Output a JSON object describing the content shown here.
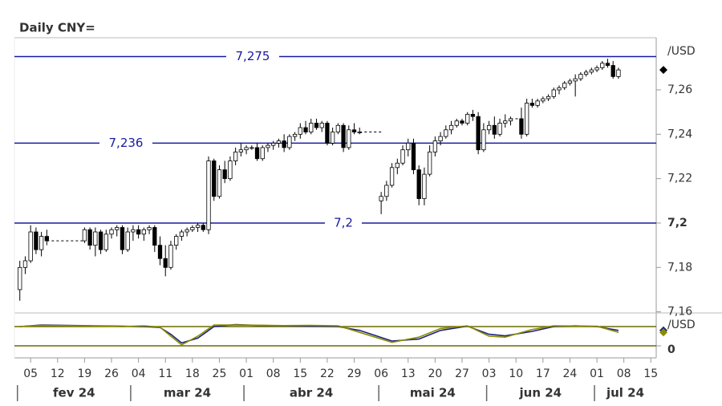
{
  "chart_data": {
    "type": "candlestick",
    "title": "Daily CNY=",
    "unit_label": "/USD",
    "x": [
      "2024-02-01",
      "2024-02-02",
      "2024-02-05",
      "2024-02-06",
      "2024-02-07",
      "2024-02-08",
      "2024-02-19",
      "2024-02-20",
      "2024-02-21",
      "2024-02-22",
      "2024-02-23",
      "2024-02-26",
      "2024-02-27",
      "2024-02-28",
      "2024-02-29",
      "2024-03-01",
      "2024-03-04",
      "2024-03-05",
      "2024-03-06",
      "2024-03-07",
      "2024-03-08",
      "2024-03-11",
      "2024-03-12",
      "2024-03-13",
      "2024-03-14",
      "2024-03-15",
      "2024-03-18",
      "2024-03-19",
      "2024-03-20",
      "2024-03-21",
      "2024-03-22",
      "2024-03-25",
      "2024-03-26",
      "2024-03-27",
      "2024-03-28",
      "2024-03-29",
      "2024-04-01",
      "2024-04-02",
      "2024-04-03",
      "2024-04-04",
      "2024-04-05",
      "2024-04-08",
      "2024-04-09",
      "2024-04-10",
      "2024-04-11",
      "2024-04-12",
      "2024-04-15",
      "2024-04-16",
      "2024-04-17",
      "2024-04-18",
      "2024-04-19",
      "2024-04-22",
      "2024-04-23",
      "2024-04-24",
      "2024-04-25",
      "2024-04-26",
      "2024-04-29",
      "2024-04-30",
      "2024-05-06",
      "2024-05-07",
      "2024-05-08",
      "2024-05-09",
      "2024-05-10",
      "2024-05-13",
      "2024-05-14",
      "2024-05-15",
      "2024-05-16",
      "2024-05-17",
      "2024-05-20",
      "2024-05-21",
      "2024-05-22",
      "2024-05-23",
      "2024-05-24",
      "2024-05-27",
      "2024-05-28",
      "2024-05-29",
      "2024-05-30",
      "2024-05-31",
      "2024-06-03",
      "2024-06-04",
      "2024-06-05",
      "2024-06-06",
      "2024-06-07",
      "2024-06-11",
      "2024-06-12",
      "2024-06-13",
      "2024-06-14",
      "2024-06-17",
      "2024-06-18",
      "2024-06-19",
      "2024-06-20",
      "2024-06-21",
      "2024-06-24",
      "2024-06-25",
      "2024-06-26",
      "2024-06-27",
      "2024-06-28",
      "2024-07-01",
      "2024-07-02",
      "2024-07-03",
      "2024-07-04",
      "2024-07-05"
    ],
    "open": [
      7.17,
      7.18,
      7.183,
      7.196,
      7.188,
      7.194,
      7.192,
      7.197,
      7.19,
      7.196,
      7.188,
      7.195,
      7.197,
      7.198,
      7.188,
      7.196,
      7.197,
      7.195,
      7.197,
      7.198,
      7.19,
      7.184,
      7.18,
      7.19,
      7.194,
      7.196,
      7.197,
      7.198,
      7.199,
      7.197,
      7.228,
      7.212,
      7.224,
      7.22,
      7.228,
      7.232,
      7.233,
      7.234,
      7.234,
      7.229,
      7.234,
      7.235,
      7.236,
      7.237,
      7.234,
      7.239,
      7.24,
      7.243,
      7.241,
      7.245,
      7.243,
      7.245,
      7.236,
      7.241,
      7.244,
      7.234,
      7.242,
      7.241,
      7.21,
      7.212,
      7.217,
      7.225,
      7.227,
      7.233,
      7.236,
      7.224,
      7.211,
      7.222,
      7.232,
      7.237,
      7.239,
      7.242,
      7.244,
      7.246,
      7.245,
      7.249,
      7.248,
      7.233,
      7.242,
      7.244,
      7.24,
      7.245,
      7.246,
      7.247,
      7.24,
      7.254,
      7.253,
      7.255,
      7.256,
      7.257,
      7.26,
      7.261,
      7.263,
      7.264,
      7.265,
      7.267,
      7.268,
      7.269,
      7.27,
      7.272,
      7.271,
      7.266
    ],
    "high": [
      7.183,
      7.185,
      7.199,
      7.198,
      7.196,
      7.197,
      7.198,
      7.198,
      7.198,
      7.197,
      7.197,
      7.198,
      7.199,
      7.199,
      7.198,
      7.199,
      7.199,
      7.198,
      7.199,
      7.199,
      7.194,
      7.19,
      7.192,
      7.195,
      7.197,
      7.198,
      7.199,
      7.2,
      7.2,
      7.23,
      7.229,
      7.226,
      7.228,
      7.23,
      7.234,
      7.236,
      7.235,
      7.235,
      7.236,
      7.235,
      7.236,
      7.237,
      7.238,
      7.24,
      7.24,
      7.241,
      7.245,
      7.246,
      7.247,
      7.247,
      7.246,
      7.246,
      7.243,
      7.245,
      7.245,
      7.244,
      7.245,
      7.243,
      7.214,
      7.219,
      7.227,
      7.229,
      7.235,
      7.238,
      7.238,
      7.226,
      7.225,
      7.235,
      7.239,
      7.241,
      7.244,
      7.246,
      7.247,
      7.247,
      7.25,
      7.251,
      7.25,
      7.245,
      7.246,
      7.248,
      7.247,
      7.249,
      7.248,
      7.252,
      7.256,
      7.256,
      7.256,
      7.257,
      7.258,
      7.261,
      7.262,
      7.264,
      7.265,
      7.267,
      7.268,
      7.269,
      7.27,
      7.271,
      7.273,
      7.274,
      7.273,
      7.27
    ],
    "low": [
      7.165,
      7.177,
      7.182,
      7.186,
      7.185,
      7.19,
      7.191,
      7.188,
      7.185,
      7.186,
      7.187,
      7.193,
      7.194,
      7.186,
      7.187,
      7.192,
      7.193,
      7.192,
      7.195,
      7.187,
      7.181,
      7.176,
      7.179,
      7.188,
      7.192,
      7.194,
      7.196,
      7.196,
      7.196,
      7.195,
      7.21,
      7.211,
      7.218,
      7.219,
      7.226,
      7.23,
      7.231,
      7.233,
      7.228,
      7.228,
      7.232,
      7.233,
      7.234,
      7.232,
      7.233,
      7.237,
      7.238,
      7.24,
      7.24,
      7.242,
      7.241,
      7.235,
      7.235,
      7.24,
      7.232,
      7.233,
      7.24,
      7.24,
      7.204,
      7.21,
      7.216,
      7.222,
      7.226,
      7.23,
      7.222,
      7.208,
      7.208,
      7.221,
      7.23,
      7.235,
      7.238,
      7.24,
      7.243,
      7.244,
      7.244,
      7.246,
      7.231,
      7.232,
      7.24,
      7.238,
      7.239,
      7.243,
      7.244,
      7.238,
      7.239,
      7.252,
      7.252,
      7.254,
      7.255,
      7.256,
      7.258,
      7.26,
      7.262,
      7.257,
      7.264,
      7.266,
      7.267,
      7.268,
      7.269,
      7.27,
      7.265,
      7.265
    ],
    "close": [
      7.18,
      7.183,
      7.196,
      7.188,
      7.194,
      7.192,
      7.197,
      7.19,
      7.196,
      7.188,
      7.195,
      7.197,
      7.198,
      7.188,
      7.196,
      7.197,
      7.195,
      7.197,
      7.198,
      7.19,
      7.184,
      7.18,
      7.19,
      7.194,
      7.196,
      7.197,
      7.198,
      7.199,
      7.197,
      7.228,
      7.212,
      7.224,
      7.22,
      7.228,
      7.232,
      7.233,
      7.234,
      7.234,
      7.229,
      7.234,
      7.235,
      7.236,
      7.237,
      7.234,
      7.239,
      7.24,
      7.243,
      7.241,
      7.245,
      7.243,
      7.245,
      7.236,
      7.241,
      7.244,
      7.234,
      7.242,
      7.241,
      7.241,
      7.212,
      7.217,
      7.225,
      7.227,
      7.233,
      7.236,
      7.224,
      7.211,
      7.222,
      7.232,
      7.237,
      7.239,
      7.242,
      7.244,
      7.246,
      7.245,
      7.249,
      7.248,
      7.233,
      7.242,
      7.244,
      7.24,
      7.245,
      7.246,
      7.247,
      7.24,
      7.254,
      7.253,
      7.255,
      7.256,
      7.257,
      7.26,
      7.261,
      7.263,
      7.264,
      7.265,
      7.267,
      7.268,
      7.269,
      7.27,
      7.272,
      7.271,
      7.266,
      7.269
    ],
    "up_color": "#ffffff",
    "down_color": "#000000",
    "xlim": [
      "2024-01-31",
      "2024-07-16"
    ],
    "xticks": [
      {
        "value": "2024-02-05",
        "label": "05"
      },
      {
        "value": "2024-02-12",
        "label": "12"
      },
      {
        "value": "2024-02-19",
        "label": "19"
      },
      {
        "value": "2024-02-26",
        "label": "26"
      },
      {
        "value": "2024-03-04",
        "label": "04"
      },
      {
        "value": "2024-03-11",
        "label": "11"
      },
      {
        "value": "2024-03-18",
        "label": "18"
      },
      {
        "value": "2024-03-25",
        "label": "25"
      },
      {
        "value": "2024-04-01",
        "label": "01"
      },
      {
        "value": "2024-04-08",
        "label": "08"
      },
      {
        "value": "2024-04-15",
        "label": "15"
      },
      {
        "value": "2024-04-22",
        "label": "22"
      },
      {
        "value": "2024-04-29",
        "label": "29"
      },
      {
        "value": "2024-05-06",
        "label": "06"
      },
      {
        "value": "2024-05-13",
        "label": "13"
      },
      {
        "value": "2024-05-20",
        "label": "20"
      },
      {
        "value": "2024-05-27",
        "label": "27"
      },
      {
        "value": "2024-06-03",
        "label": "03"
      },
      {
        "value": "2024-06-10",
        "label": "10"
      },
      {
        "value": "2024-06-17",
        "label": "17"
      },
      {
        "value": "2024-06-24",
        "label": "24"
      },
      {
        "value": "2024-07-01",
        "label": "01"
      },
      {
        "value": "2024-07-08",
        "label": "08"
      },
      {
        "value": "2024-07-15",
        "label": "15"
      }
    ],
    "months": [
      "fev 24",
      "mar 24",
      "abr 24",
      "mai 24",
      "jun 24",
      "jul 24"
    ],
    "ylim": [
      7.1595,
      7.2835
    ],
    "yticks": [
      {
        "value": 7.16,
        "label": "7,16"
      },
      {
        "value": 7.18,
        "label": "7,18"
      },
      {
        "value": 7.2,
        "label": "7,2"
      },
      {
        "value": 7.22,
        "label": "7,22"
      },
      {
        "value": 7.24,
        "label": "7,24"
      },
      {
        "value": 7.26,
        "label": "7,26"
      }
    ],
    "reference_lines": [
      {
        "value": 7.275,
        "label": "7,275"
      },
      {
        "value": 7.236,
        "label": "7,236"
      },
      {
        "value": 7.2,
        "label": "7,2"
      }
    ],
    "reference_color": "#1a1aa0",
    "oscillator": {
      "unit_label": "/USD",
      "x": [
        "2024-02-01",
        "2024-02-07",
        "2024-02-21",
        "2024-02-28",
        "2024-03-05",
        "2024-03-08",
        "2024-03-12",
        "2024-03-14",
        "2024-03-19",
        "2024-03-22",
        "2024-03-28",
        "2024-04-03",
        "2024-04-10",
        "2024-04-17",
        "2024-04-24",
        "2024-04-30",
        "2024-05-08",
        "2024-05-15",
        "2024-05-21",
        "2024-05-28",
        "2024-06-03",
        "2024-06-06",
        "2024-06-13",
        "2024-06-19",
        "2024-06-25",
        "2024-07-01",
        "2024-07-05"
      ],
      "series": [
        {
          "color": "#1a237e",
          "values": [
            100,
            108,
            104,
            102,
            100,
            95,
            60,
            15,
            40,
            100,
            110,
            106,
            104,
            102,
            100,
            80,
            25,
            35,
            80,
            102,
            60,
            52,
            75,
            100,
            104,
            100,
            80
          ]
        },
        {
          "color": "#8b8b00",
          "values": [
            100,
            106,
            103,
            100,
            104,
            97,
            50,
            5,
            50,
            108,
            108,
            107,
            105,
            106,
            104,
            70,
            18,
            45,
            90,
            104,
            50,
            45,
            85,
            104,
            103,
            102,
            70
          ]
        }
      ],
      "levels": [
        0,
        100
      ],
      "level_color": "#6b6b00",
      "ylim": [
        -62.5,
        162.5
      ],
      "yticks": [
        0
      ]
    }
  }
}
